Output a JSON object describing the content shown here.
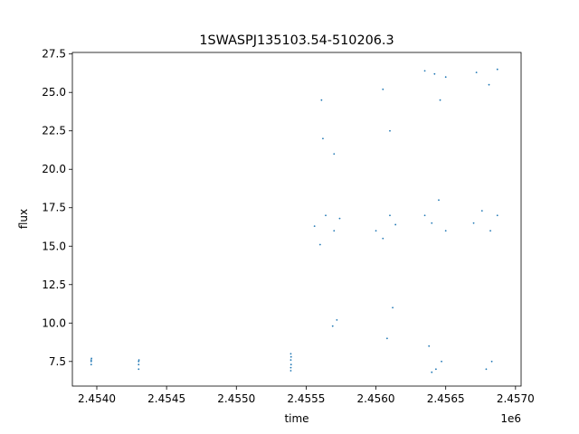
{
  "chart_data": {
    "type": "scatter",
    "title": "1SWASPJ135103.54-510206.3",
    "xlabel": "time",
    "ylabel": "flux",
    "x_offset_label": "1e6",
    "xlim": [
      2453825,
      2457040
    ],
    "ylim": [
      5.9,
      27.6
    ],
    "x_ticks": [
      {
        "value": 2454000,
        "label": "2.4540"
      },
      {
        "value": 2454500,
        "label": "2.4545"
      },
      {
        "value": 2455000,
        "label": "2.4550"
      },
      {
        "value": 2455500,
        "label": "2.4555"
      },
      {
        "value": 2456000,
        "label": "2.4560"
      },
      {
        "value": 2456500,
        "label": "2.4565"
      },
      {
        "value": 2457000,
        "label": "2.4570"
      }
    ],
    "y_ticks": [
      {
        "value": 7.5,
        "label": "7.5"
      },
      {
        "value": 10.0,
        "label": "10.0"
      },
      {
        "value": 12.5,
        "label": "12.5"
      },
      {
        "value": 15.0,
        "label": "15.0"
      },
      {
        "value": 17.5,
        "label": "17.5"
      },
      {
        "value": 20.0,
        "label": "20.0"
      },
      {
        "value": 22.5,
        "label": "22.5"
      },
      {
        "value": 25.0,
        "label": "25.0"
      },
      {
        "value": 27.5,
        "label": "27.5"
      }
    ],
    "grid": false,
    "color": "#1f77b4",
    "series": [
      {
        "points": [
          [
            2453960,
            7.3
          ],
          [
            2453960,
            7.5
          ],
          [
            2453962,
            7.7
          ],
          [
            2453960,
            7.6
          ],
          [
            2454300,
            7.0
          ],
          [
            2454300,
            7.3
          ],
          [
            2454302,
            7.6
          ],
          [
            2454300,
            7.5
          ],
          [
            2455390,
            6.9
          ],
          [
            2455390,
            7.1
          ],
          [
            2455392,
            7.3
          ],
          [
            2455390,
            7.6
          ],
          [
            2455392,
            7.8
          ],
          [
            2455390,
            8.0
          ],
          [
            2455560,
            16.3
          ],
          [
            2455600,
            15.1
          ],
          [
            2455640,
            17.0
          ],
          [
            2455700,
            16.0
          ],
          [
            2455740,
            16.8
          ],
          [
            2455620,
            22.0
          ],
          [
            2455610,
            24.5
          ],
          [
            2455700,
            21.0
          ],
          [
            2455720,
            10.2
          ],
          [
            2455690,
            9.8
          ],
          [
            2456000,
            16.0
          ],
          [
            2456050,
            15.5
          ],
          [
            2456100,
            17.0
          ],
          [
            2456140,
            16.4
          ],
          [
            2456050,
            25.2
          ],
          [
            2456100,
            22.5
          ],
          [
            2456080,
            9.0
          ],
          [
            2456120,
            11.0
          ],
          [
            2456350,
            17.0
          ],
          [
            2456400,
            16.5
          ],
          [
            2456450,
            18.0
          ],
          [
            2456500,
            16.0
          ],
          [
            2456350,
            26.4
          ],
          [
            2456420,
            26.2
          ],
          [
            2456460,
            24.5
          ],
          [
            2456500,
            26.0
          ],
          [
            2456400,
            6.8
          ],
          [
            2456430,
            7.0
          ],
          [
            2456470,
            7.5
          ],
          [
            2456380,
            8.5
          ],
          [
            2456700,
            16.5
          ],
          [
            2456760,
            17.3
          ],
          [
            2456820,
            16.0
          ],
          [
            2456870,
            17.0
          ],
          [
            2456720,
            26.3
          ],
          [
            2456810,
            25.5
          ],
          [
            2456870,
            26.5
          ],
          [
            2456790,
            7.0
          ],
          [
            2456830,
            7.5
          ]
        ]
      }
    ]
  }
}
